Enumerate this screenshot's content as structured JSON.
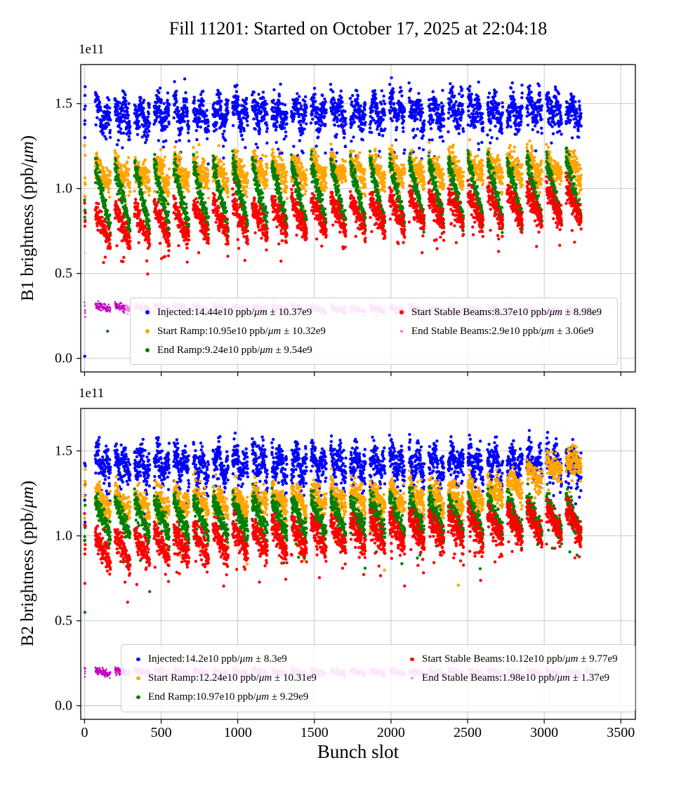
{
  "figure": {
    "title": "Fill 11201: Started on October 17, 2025 at 22:04:18",
    "xlabel": "Bunch slot"
  },
  "chart_data": [
    {
      "type": "scatter",
      "beam": "B1",
      "ylabel_pre": "B1 brightness (ppb/",
      "ylabel_unit": "μm",
      "ylabel_post": ")",
      "offset_text": "1e11",
      "unit_scale": "1e11",
      "xlim": [
        -25,
        3595
      ],
      "ylim": [
        -0.08,
        1.73
      ],
      "grid": true,
      "xticks": [
        0,
        500,
        1000,
        1500,
        2000,
        2500,
        3000,
        3500
      ],
      "xtick_labels": null,
      "yticks": [
        0.0,
        0.5,
        1.0,
        1.5
      ],
      "ytick_labels": [
        "0.0",
        "0.5",
        "1.0",
        "1.5"
      ],
      "legend_columns": [
        [
          0,
          1,
          2
        ],
        [
          3,
          4
        ]
      ],
      "series": [
        {
          "name": "Injected",
          "color": "#0000ff",
          "mean_e10": 14.44,
          "std_e9": 10.37,
          "legend": {
            "pre": "Injected:14.44e10 ppb/",
            "unit": "μm",
            "post": " ± 10.37e9"
          },
          "gen": {
            "seed": 101,
            "mean": 1.448,
            "a0": 0.03,
            "a1": -0.03,
            "wave": 0.05,
            "wfreq": 1.6,
            "drift": 0.03,
            "noise": 0.05,
            "tailp": 0.04,
            "tail": 0.28,
            "xmax": 3250,
            "size": 2.2
          }
        },
        {
          "name": "Start Ramp",
          "color": "#ffa500",
          "mean_e10": 10.95,
          "std_e9": 10.32,
          "legend": {
            "pre": "Start Ramp:10.95e10 ppb/",
            "unit": "μm",
            "post": " ± 10.32e9"
          },
          "gen": {
            "seed": 202,
            "mean": 1.095,
            "a0": 0.07,
            "a1": -0.05,
            "wave": 0.02,
            "wfreq": 1.2,
            "drift": 0.04,
            "noise": 0.04,
            "tailp": 0.02,
            "tail": 0.18,
            "xmax": 3250,
            "size": 2.2
          }
        },
        {
          "name": "End Ramp",
          "color": "#008000",
          "mean_e10": 9.24,
          "std_e9": 9.54,
          "legend": {
            "pre": "End Ramp:9.24e10 ppb/",
            "unit": "μm",
            "post": " ± 9.54e9"
          },
          "gen": {
            "seed": 303,
            "mean": 0.924,
            "a0": 0.23,
            "a1": -0.14,
            "wave": 0.0,
            "drift": 0.05,
            "noise": 0.032,
            "xmax": 3250,
            "size": 2.2
          }
        },
        {
          "name": "Start Stable Beams",
          "color": "#ff0000",
          "mean_e10": 8.37,
          "std_e9": 8.98,
          "legend": {
            "pre": "Start Stable Beams:8.37e10 ppb/",
            "unit": "μm",
            "post": " ± 8.98e9"
          },
          "gen": {
            "seed": 404,
            "mean": 0.837,
            "a0": 0.11,
            "a1": -0.1,
            "drift": 0.14,
            "noise": 0.034,
            "tailp": 0.03,
            "tail": 0.2,
            "xmax": 3250,
            "size": 2.2
          }
        },
        {
          "name": "End Stable Beams",
          "color": "#ee82ee",
          "mean_e10": 2.9,
          "std_e9": 3.06,
          "legend": {
            "pre": "End Stable Beams:2.9e10 ppb/",
            "unit": "μm",
            "post": " ± 3.06e9"
          },
          "gen": {
            "seed": 505,
            "mean": 0.288,
            "a0": 0.012,
            "a1": -0.012,
            "drift": -0.025,
            "noise": 0.012,
            "xmax": 3340,
            "size": 1.2,
            "color2": "#c000c0",
            "color2_until": 265
          }
        }
      ],
      "outliers": [
        [
          1,
          0.012,
          0
        ],
        [
          2,
          1.3,
          0
        ],
        [
          4,
          0.95,
          1
        ],
        [
          150,
          0.16,
          2
        ],
        [
          3,
          0.62,
          4
        ]
      ]
    },
    {
      "type": "scatter",
      "beam": "B2",
      "ylabel_pre": "B2 brightness (ppb/",
      "ylabel_unit": "μm",
      "ylabel_post": ")",
      "offset_text": "1e11",
      "unit_scale": "1e11",
      "xlim": [
        -25,
        3595
      ],
      "ylim": [
        -0.08,
        1.75
      ],
      "grid": true,
      "xticks": [
        0,
        500,
        1000,
        1500,
        2000,
        2500,
        3000,
        3500
      ],
      "xtick_labels": [
        "0",
        "500",
        "1000",
        "1500",
        "2000",
        "2500",
        "3000",
        "3500"
      ],
      "yticks": [
        0.0,
        0.5,
        1.0,
        1.5
      ],
      "ytick_labels": [
        "0.0",
        "0.5",
        "1.0",
        "1.5"
      ],
      "legend_columns": [
        [
          0,
          1,
          2
        ],
        [
          3,
          4
        ]
      ],
      "series": [
        {
          "name": "Injected",
          "color": "#0000ff",
          "mean_e10": 14.2,
          "std_e9": 8.3,
          "legend": {
            "pre": "Injected:14.2e10 ppb/",
            "unit": "μm",
            "post": " ± 8.3e9"
          },
          "gen": {
            "seed": 111,
            "mean": 1.423,
            "a0": 0.03,
            "a1": -0.03,
            "wave": 0.05,
            "wfreq": 1.6,
            "drift": 0.0,
            "noise": 0.05,
            "tailp": 0.04,
            "tail": 0.25,
            "xmax": 3250,
            "size": 2.2
          }
        },
        {
          "name": "Start Ramp",
          "color": "#ffa500",
          "mean_e10": 12.24,
          "std_e9": 10.31,
          "legend": {
            "pre": "Start Ramp:12.24e10 ppb/",
            "unit": "μm",
            "post": " ± 10.31e9"
          },
          "gen": {
            "seed": 222,
            "mean": 1.21,
            "a0": 0.06,
            "a1": -0.05,
            "wave": 0.02,
            "wfreq": 1.2,
            "drift": 0.06,
            "noise": 0.04,
            "late": [
              2600,
              0.22
            ],
            "tailp": 0.015,
            "tail": 0.3,
            "xmax": 3270,
            "size": 2.2
          }
        },
        {
          "name": "End Ramp",
          "color": "#008000",
          "mean_e10": 10.97,
          "std_e9": 9.29,
          "legend": {
            "pre": "End Ramp:10.97e10 ppb/",
            "unit": "μm",
            "post": " ± 9.29e9"
          },
          "gen": {
            "seed": 333,
            "mean": 1.09,
            "a0": 0.13,
            "a1": -0.09,
            "drift": 0.02,
            "noise": 0.034,
            "tailp": 0.02,
            "tail": 0.25,
            "xmax": 3250,
            "size": 2.2
          }
        },
        {
          "name": "Start Stable Beams",
          "color": "#ff0000",
          "mean_e10": 10.12,
          "std_e9": 9.77,
          "legend": {
            "pre": "Start Stable Beams:10.12e10 ppb/",
            "unit": "μm",
            "post": " ± 9.77e9"
          },
          "gen": {
            "seed": 444,
            "mean": 1.0,
            "a0": 0.09,
            "a1": -0.09,
            "drift": 0.17,
            "noise": 0.038,
            "tailp": 0.03,
            "tail": 0.22,
            "xmax": 3250,
            "size": 2.2
          }
        },
        {
          "name": "End Stable Beams",
          "color": "#ee82ee",
          "mean_e10": 1.98,
          "std_e9": 1.37,
          "legend": {
            "pre": "End Stable Beams:1.98e10 ppb/",
            "unit": "μm",
            "post": " ± 1.37e9"
          },
          "gen": {
            "seed": 555,
            "mean": 0.197,
            "a0": 0.01,
            "a1": -0.01,
            "drift": -0.005,
            "noise": 0.011,
            "xmax": 3340,
            "size": 1.2,
            "color2": "#c000c0",
            "color2_until": 265
          }
        }
      ],
      "outliers": [
        [
          2,
          0.55,
          2
        ],
        [
          2,
          0.72,
          3
        ],
        [
          3,
          1.08,
          0
        ],
        [
          2440,
          0.71,
          1
        ]
      ]
    }
  ]
}
